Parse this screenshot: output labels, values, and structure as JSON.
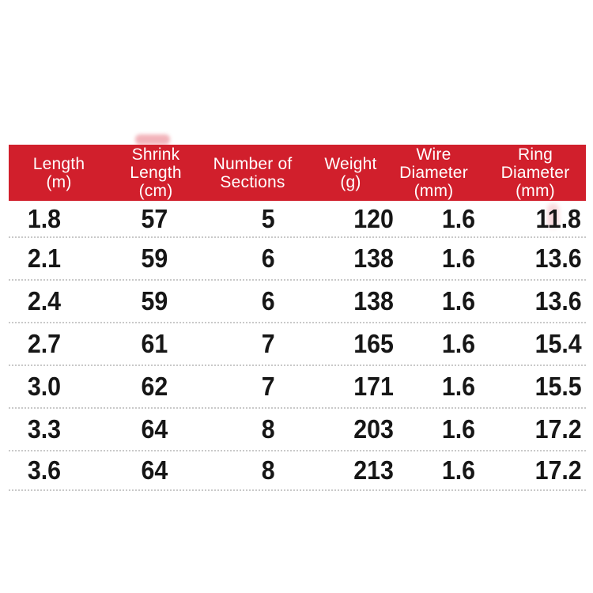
{
  "colors": {
    "background": "#ffffff",
    "header_bg": "#d11f2c",
    "header_text": "#ffffff",
    "body_text": "#161616",
    "row_separator": "#c9c9c9"
  },
  "table": {
    "columns": [
      {
        "label": "Length\n(m)"
      },
      {
        "label": "Shrink\nLength\n(cm)"
      },
      {
        "label": "Number of\nSections"
      },
      {
        "label": "Weight\n(g)"
      },
      {
        "label": "Wire\nDiameter\n(mm)"
      },
      {
        "label": "Ring\nDiameter\n(mm)"
      }
    ],
    "rows": [
      [
        "1.8",
        "57",
        "5",
        "120",
        "1.6",
        "11.8"
      ],
      [
        "2.1",
        "59",
        "6",
        "138",
        "1.6",
        "13.6"
      ],
      [
        "2.4",
        "59",
        "6",
        "138",
        "1.6",
        "13.6"
      ],
      [
        "2.7",
        "61",
        "7",
        "165",
        "1.6",
        "15.4"
      ],
      [
        "3.0",
        "62",
        "7",
        "171",
        "1.6",
        "15.5"
      ],
      [
        "3.3",
        "64",
        "8",
        "203",
        "1.6",
        "17.2"
      ],
      [
        "3.6",
        "64",
        "8",
        "213",
        "1.6",
        "17.2"
      ]
    ]
  }
}
